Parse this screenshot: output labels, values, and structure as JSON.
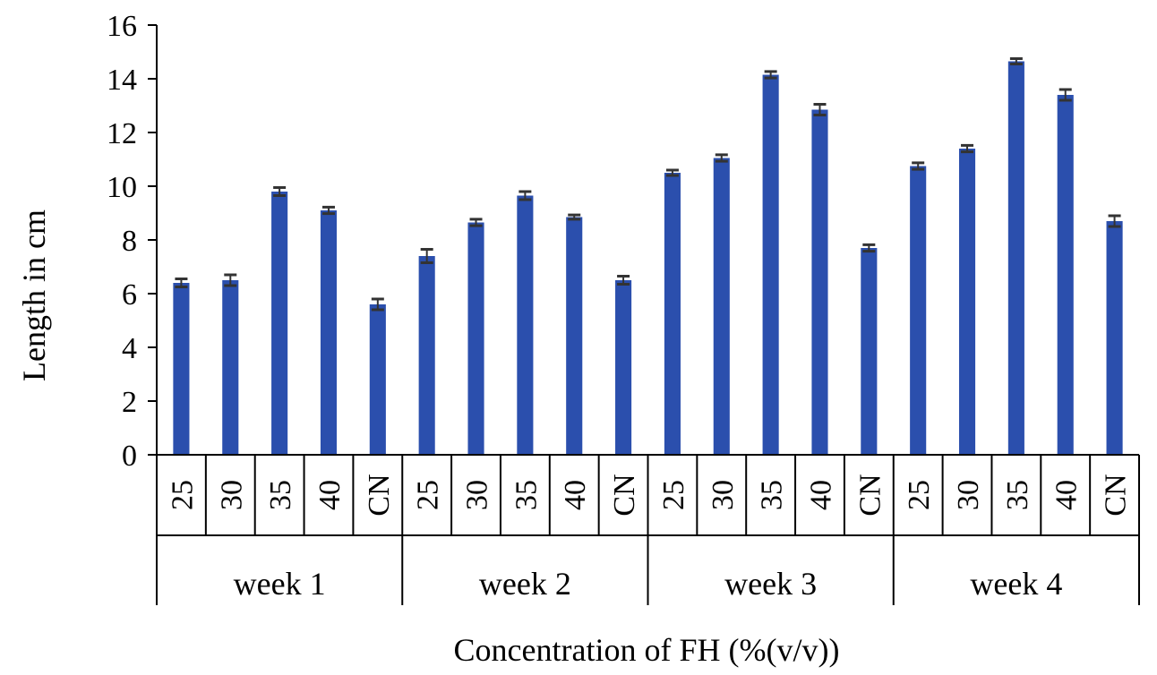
{
  "chart_data": {
    "type": "bar",
    "xlabel": "Concentration of FH (%(v/v))",
    "ylabel": "Length in cm",
    "ylim": [
      0,
      16
    ],
    "yticks": [
      0,
      2,
      4,
      6,
      8,
      10,
      12,
      14,
      16
    ],
    "grid": false,
    "legend": "none",
    "bar_color": "#2b4fad",
    "errorbar_color": "#333333",
    "groups": [
      {
        "label": "week 1",
        "categories": [
          "25",
          "30",
          "35",
          "40",
          "CN"
        ],
        "values": [
          6.4,
          6.5,
          9.8,
          9.1,
          5.6
        ],
        "errors": [
          0.15,
          0.2,
          0.15,
          0.12,
          0.2
        ]
      },
      {
        "label": "week 2",
        "categories": [
          "25",
          "30",
          "35",
          "40",
          "CN"
        ],
        "values": [
          7.4,
          8.65,
          9.65,
          8.85,
          6.5
        ],
        "errors": [
          0.25,
          0.12,
          0.15,
          0.08,
          0.15
        ]
      },
      {
        "label": "week 3",
        "categories": [
          "25",
          "30",
          "35",
          "40",
          "CN"
        ],
        "values": [
          10.5,
          11.05,
          14.15,
          12.85,
          7.7
        ],
        "errors": [
          0.1,
          0.12,
          0.12,
          0.2,
          0.12
        ]
      },
      {
        "label": "week 4",
        "categories": [
          "25",
          "30",
          "35",
          "40",
          "CN"
        ],
        "values": [
          10.75,
          11.4,
          14.65,
          13.4,
          8.7
        ],
        "errors": [
          0.12,
          0.12,
          0.1,
          0.2,
          0.2
        ]
      }
    ]
  }
}
